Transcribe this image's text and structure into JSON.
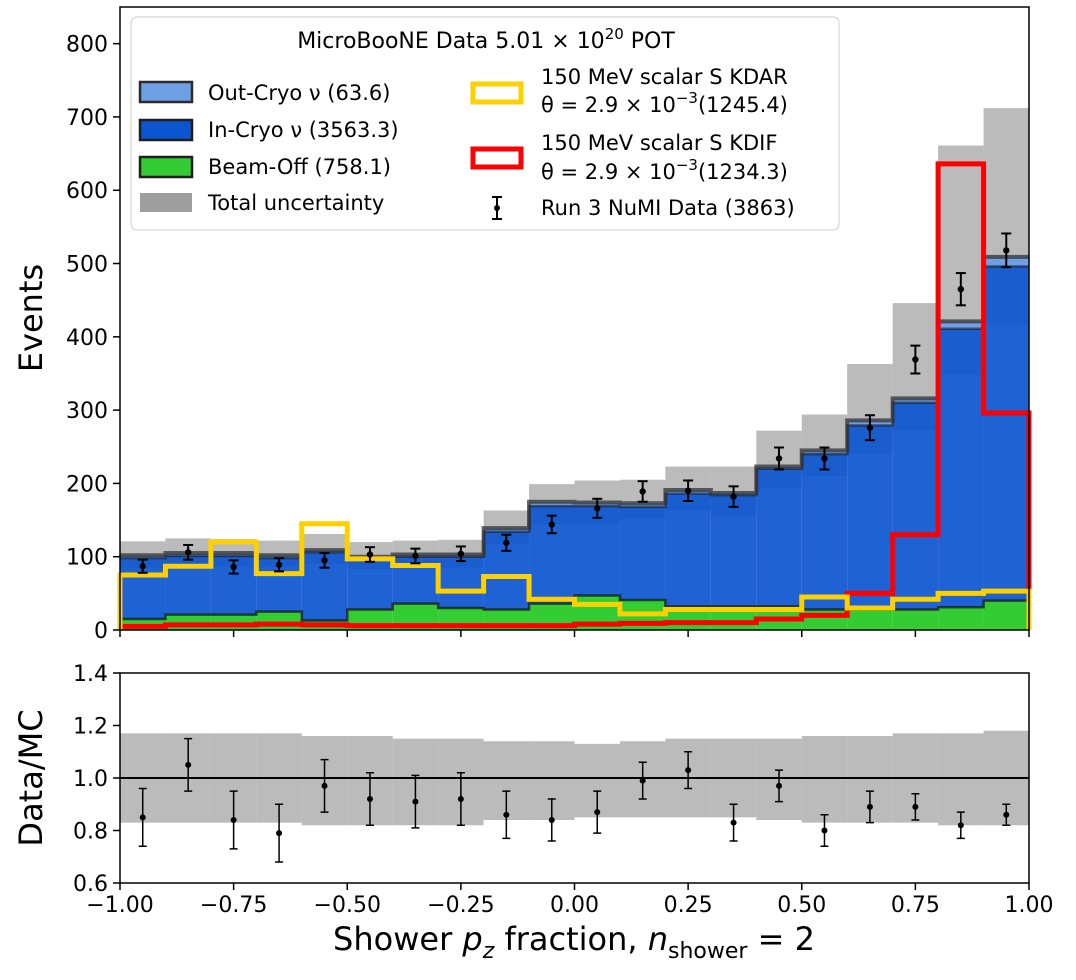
{
  "chart_data": [
    {
      "type": "bar",
      "panel": "main",
      "ylabel": "Events",
      "xlim": [
        -1.0,
        1.0
      ],
      "ylim": [
        0,
        850
      ],
      "yticks": [
        0,
        100,
        200,
        300,
        400,
        500,
        600,
        700,
        800
      ],
      "ytick_labels": [
        "0",
        "100",
        "200",
        "300",
        "400",
        "500",
        "600",
        "700",
        "800"
      ],
      "bin_edges": [
        -1.0,
        -0.9,
        -0.8,
        -0.7,
        -0.6,
        -0.5,
        -0.4,
        -0.3,
        -0.2,
        -0.1,
        0.0,
        0.1,
        0.2,
        0.3,
        0.4,
        0.5,
        0.6,
        0.7,
        0.8,
        0.9,
        1.0
      ],
      "stack": {
        "beam_off": [
          15,
          21,
          21,
          25,
          13,
          28,
          36,
          30,
          28,
          36,
          47,
          41,
          32,
          32,
          32,
          28,
          28,
          28,
          31,
          40
        ],
        "in_cryo": [
          83,
          80,
          80,
          73,
          93,
          68,
          64,
          70,
          106,
          133,
          122,
          127,
          154,
          152,
          188,
          212,
          251,
          282,
          380,
          456
        ],
        "out_cryo": [
          4,
          4,
          4,
          4,
          3,
          4,
          3,
          3,
          5,
          6,
          5,
          5,
          5,
          3,
          3,
          5,
          7,
          6,
          10,
          13
        ]
      },
      "uncertainty_band": {
        "low": [
          84,
          89,
          86,
          86,
          90,
          83,
          85,
          85,
          117,
          145,
          145,
          152,
          163,
          155,
          193,
          210,
          240,
          272,
          348,
          418
        ],
        "high": [
          121,
          125,
          124,
          122,
          131,
          120,
          122,
          123,
          163,
          199,
          204,
          205,
          223,
          223,
          272,
          294,
          363,
          446,
          661,
          712
        ]
      },
      "kdar_signal": [
        75,
        87,
        120,
        77,
        145,
        97,
        88,
        53,
        73,
        42,
        35,
        22,
        28,
        28,
        28,
        45,
        30,
        42,
        50,
        53
      ],
      "kdif_signal": [
        5,
        7,
        7,
        8,
        7,
        6,
        6,
        6,
        6,
        6,
        8,
        9,
        10,
        10,
        15,
        20,
        50,
        130,
        636,
        296
      ],
      "data_points": {
        "x": [
          -0.95,
          -0.85,
          -0.75,
          -0.65,
          -0.55,
          -0.45,
          -0.35,
          -0.25,
          -0.15,
          -0.05,
          0.05,
          0.15,
          0.25,
          0.35,
          0.45,
          0.55,
          0.65,
          0.75,
          0.85,
          0.95
        ],
        "y": [
          87,
          106,
          86,
          89,
          95,
          103,
          101,
          104,
          119,
          144,
          166,
          189,
          190,
          182,
          234,
          234,
          276,
          369,
          465,
          518
        ],
        "err": [
          9,
          10,
          9,
          9,
          10,
          10,
          10,
          10,
          11,
          12,
          13,
          14,
          14,
          14,
          15,
          15,
          17,
          19,
          22,
          23
        ]
      },
      "legend": {
        "title_prefix": "MicroBooNE Data 5.01 × 10",
        "title_exponent": "20",
        "title_suffix": " POT",
        "out_cryo": "Out-Cryo ν (63.6)",
        "in_cryo": "In-Cryo ν (3563.3)",
        "beam_off": "Beam-Off (758.1)",
        "uncertainty": "Total uncertainty",
        "kdar_line1": "150 MeV scalar S KDAR",
        "kdar_line2_prefix": "θ = 2.9 × 10",
        "kdar_line2_exponent": "−3",
        "kdar_line2_suffix": "(1245.4)",
        "kdif_line1": "150 MeV scalar S KDIF",
        "kdif_line2_prefix": "θ = 2.9 × 10",
        "kdif_line2_exponent": "−3",
        "kdif_line2_suffix": "(1234.3)",
        "data": "Run 3 NuMI Data (3863)"
      }
    },
    {
      "type": "scatter",
      "panel": "ratio",
      "ylabel": "Data/MC",
      "xlabel_prefix": "Shower ",
      "xlabel_p": "p",
      "xlabel_z": "z",
      "xlabel_mid": " fraction, ",
      "xlabel_n": "n",
      "xlabel_sub": "shower",
      "xlabel_eq": " = 2",
      "xlim": [
        -1.0,
        1.0
      ],
      "ylim": [
        0.6,
        1.4
      ],
      "xticks": [
        -1.0,
        -0.75,
        -0.5,
        -0.25,
        0.0,
        0.25,
        0.5,
        0.75,
        1.0
      ],
      "xtick_labels": [
        "−1.00",
        "−0.75",
        "−0.50",
        "−0.25",
        "0.00",
        "0.25",
        "0.50",
        "0.75",
        "1.00"
      ],
      "yticks": [
        0.6,
        0.8,
        1.0,
        1.2,
        1.4
      ],
      "ytick_labels": [
        "0.6",
        "0.8",
        "1.0",
        "1.2",
        "1.4"
      ],
      "reference_line": 1.0,
      "band_low": [
        0.83,
        0.83,
        0.83,
        0.83,
        0.82,
        0.82,
        0.82,
        0.82,
        0.84,
        0.84,
        0.85,
        0.85,
        0.85,
        0.85,
        0.84,
        0.83,
        0.83,
        0.83,
        0.82,
        0.82
      ],
      "band_high": [
        1.17,
        1.17,
        1.17,
        1.17,
        1.16,
        1.16,
        1.15,
        1.15,
        1.14,
        1.14,
        1.13,
        1.14,
        1.15,
        1.15,
        1.15,
        1.16,
        1.16,
        1.17,
        1.17,
        1.18
      ],
      "x": [
        -0.95,
        -0.85,
        -0.75,
        -0.65,
        -0.55,
        -0.45,
        -0.35,
        -0.25,
        -0.15,
        -0.05,
        0.05,
        0.15,
        0.25,
        0.35,
        0.45,
        0.55,
        0.65,
        0.75,
        0.85,
        0.95
      ],
      "y": [
        0.85,
        1.05,
        0.84,
        0.79,
        0.97,
        0.92,
        0.91,
        0.92,
        0.86,
        0.84,
        0.87,
        0.99,
        1.03,
        0.83,
        0.97,
        0.8,
        0.89,
        0.89,
        0.82,
        0.86
      ],
      "err": [
        0.11,
        0.1,
        0.11,
        0.11,
        0.1,
        0.1,
        0.1,
        0.1,
        0.09,
        0.08,
        0.08,
        0.07,
        0.07,
        0.07,
        0.06,
        0.06,
        0.06,
        0.05,
        0.05,
        0.04
      ]
    }
  ],
  "colors": {
    "out_cryo": "#6fa0e6",
    "in_cryo": "#0b55d0",
    "beam_off": "#33cc33",
    "uncertainty": "#9e9e9e",
    "kdar": "#ffd000",
    "kdif": "#ff0000",
    "data": "#000000"
  }
}
